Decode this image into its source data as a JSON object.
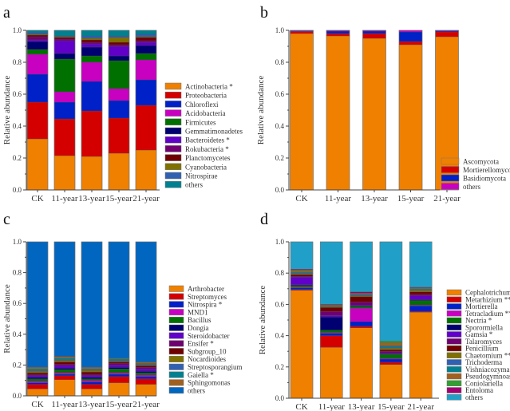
{
  "chart_data": [
    {
      "panel": "a",
      "type": "bar",
      "stacked": true,
      "ylabel": "Relative abundance",
      "ylim": [
        0,
        1
      ],
      "yticks": [
        "0.0",
        "0.2",
        "0.4",
        "0.6",
        "0.8",
        "1.0"
      ],
      "categories": [
        "CK",
        "11-year",
        "13-year",
        "15-year",
        "21-year"
      ],
      "legend_position": "right",
      "series": [
        {
          "name": "Actinobacteria *",
          "color": "#f08000",
          "values": [
            0.32,
            0.215,
            0.21,
            0.23,
            0.25
          ]
        },
        {
          "name": "Proteobacteria",
          "color": "#d40000",
          "values": [
            0.23,
            0.23,
            0.285,
            0.22,
            0.28
          ]
        },
        {
          "name": "Chloroflexi",
          "color": "#0020c8",
          "values": [
            0.175,
            0.105,
            0.185,
            0.11,
            0.16
          ]
        },
        {
          "name": "Acidobacteria",
          "color": "#c800c0",
          "values": [
            0.125,
            0.065,
            0.12,
            0.075,
            0.125
          ]
        },
        {
          "name": "Firmicutes",
          "color": "#007000",
          "values": [
            0.03,
            0.205,
            0.04,
            0.175,
            0.04
          ]
        },
        {
          "name": "Gemmatimonadetes",
          "color": "#000070",
          "values": [
            0.05,
            0.035,
            0.055,
            0.03,
            0.05
          ]
        },
        {
          "name": "Bacteroidetes *",
          "color": "#6000c8",
          "values": [
            0.01,
            0.08,
            0.02,
            0.06,
            0.02
          ]
        },
        {
          "name": "Rokubacteria *",
          "color": "#700070",
          "values": [
            0.02,
            0.01,
            0.01,
            0.01,
            0.01
          ]
        },
        {
          "name": "Planctomycetes",
          "color": "#700000",
          "values": [
            0.01,
            0.01,
            0.015,
            0.015,
            0.02
          ]
        },
        {
          "name": "Cyanobacteria",
          "color": "#807000",
          "values": [
            0.005,
            0.005,
            0.01,
            0.03,
            0.005
          ]
        },
        {
          "name": "Nitrospirae",
          "color": "#3060b0",
          "values": [
            0.01,
            0.005,
            0.015,
            0.01,
            0.015
          ]
        },
        {
          "name": "others",
          "color": "#008090",
          "values": [
            0.015,
            0.035,
            0.035,
            0.035,
            0.025
          ]
        }
      ]
    },
    {
      "panel": "b",
      "type": "bar",
      "stacked": true,
      "ylabel": "Relative abundance",
      "ylim": [
        0,
        1
      ],
      "yticks": [
        "0.0",
        "0.2",
        "0.4",
        "0.6",
        "0.8",
        "1.0"
      ],
      "categories": [
        "CK",
        "11-year",
        "13-year",
        "15-year",
        "21-year"
      ],
      "legend_position": "bottom-right",
      "series": [
        {
          "name": "Ascomycota",
          "color": "#f08000",
          "values": [
            0.98,
            0.965,
            0.95,
            0.91,
            0.96
          ]
        },
        {
          "name": "Mortierellomycota",
          "color": "#d40000",
          "values": [
            0.012,
            0.015,
            0.03,
            0.02,
            0.03
          ]
        },
        {
          "name": "Basidiomycota",
          "color": "#0020c8",
          "values": [
            0.003,
            0.015,
            0.015,
            0.06,
            0.005
          ]
        },
        {
          "name": "others",
          "color": "#c800c0",
          "values": [
            0.005,
            0.005,
            0.005,
            0.01,
            0.005
          ]
        }
      ]
    },
    {
      "panel": "c",
      "type": "bar",
      "stacked": true,
      "ylabel": "Relative abundance",
      "ylim": [
        0,
        1
      ],
      "yticks": [
        "0.0",
        "0.2",
        "0.4",
        "0.6",
        "0.8",
        "1.0"
      ],
      "categories": [
        "CK",
        "11-year",
        "13-year",
        "15-year",
        "21-year"
      ],
      "legend_position": "right",
      "series": [
        {
          "name": "Arthrobacter",
          "color": "#f08000",
          "values": [
            0.045,
            0.105,
            0.045,
            0.085,
            0.075
          ]
        },
        {
          "name": "Streptomyces",
          "color": "#d40000",
          "values": [
            0.03,
            0.025,
            0.03,
            0.04,
            0.035
          ]
        },
        {
          "name": "Nitrospira *",
          "color": "#0020c8",
          "values": [
            0.01,
            0.01,
            0.015,
            0.015,
            0.015
          ]
        },
        {
          "name": "MND1",
          "color": "#c800c0",
          "values": [
            0.01,
            0.01,
            0.01,
            0.01,
            0.01
          ]
        },
        {
          "name": "Bacillus",
          "color": "#007000",
          "values": [
            0.015,
            0.02,
            0.01,
            0.025,
            0.015
          ]
        },
        {
          "name": "Dongia",
          "color": "#000070",
          "values": [
            0.01,
            0.01,
            0.01,
            0.01,
            0.01
          ]
        },
        {
          "name": "Steroidobacter",
          "color": "#6000c8",
          "values": [
            0.01,
            0.015,
            0.01,
            0.015,
            0.015
          ]
        },
        {
          "name": "Ensifer *",
          "color": "#700070",
          "values": [
            0.01,
            0.01,
            0.01,
            0.01,
            0.01
          ]
        },
        {
          "name": "Subgroup_10",
          "color": "#700000",
          "values": [
            0.01,
            0.015,
            0.015,
            0.01,
            0.01
          ]
        },
        {
          "name": "Nocardioides",
          "color": "#807000",
          "values": [
            0.01,
            0.01,
            0.01,
            0.005,
            0.005
          ]
        },
        {
          "name": "Streptosporangium",
          "color": "#3060b0",
          "values": [
            0.005,
            0.005,
            0.005,
            0.005,
            0.005
          ]
        },
        {
          "name": "Gaiella *",
          "color": "#008090",
          "values": [
            0.01,
            0.01,
            0.005,
            0.01,
            0.005
          ]
        },
        {
          "name": "Sphingomonas",
          "color": "#a06020",
          "values": [
            0.01,
            0.01,
            0.01,
            0.005,
            0.01
          ]
        },
        {
          "name": "others",
          "color": "#0066c0",
          "values": [
            0.815,
            0.745,
            0.815,
            0.755,
            0.78
          ]
        }
      ]
    },
    {
      "panel": "d",
      "type": "bar",
      "stacked": true,
      "ylabel": "Relative abundance",
      "ylim": [
        0,
        1
      ],
      "yticks": [
        "0.0",
        "0.2",
        "0.4",
        "0.6",
        "0.8",
        "1.0"
      ],
      "categories": [
        "CK",
        "11-year",
        "13-year",
        "15-year",
        "21-year"
      ],
      "legend_position": "right",
      "series": [
        {
          "name": "Cephalotrichum ***",
          "color": "#f08000",
          "values": [
            0.69,
            0.325,
            0.45,
            0.215,
            0.55
          ]
        },
        {
          "name": "Metarhizium **",
          "color": "#d40000",
          "values": [
            0.005,
            0.075,
            0.01,
            0.015,
            0.005
          ]
        },
        {
          "name": "Mortierella",
          "color": "#0020c8",
          "values": [
            0.01,
            0.015,
            0.03,
            0.02,
            0.035
          ]
        },
        {
          "name": "Tetracladium **",
          "color": "#c800c0",
          "values": [
            0.005,
            0.005,
            0.085,
            0.005,
            0.005
          ]
        },
        {
          "name": "Nectria *",
          "color": "#007000",
          "values": [
            0.01,
            0.015,
            0.01,
            0.025,
            0.03
          ]
        },
        {
          "name": "Sporormiella",
          "color": "#000070",
          "values": [
            0.005,
            0.085,
            0.005,
            0.005,
            0.005
          ]
        },
        {
          "name": "Gamsia *",
          "color": "#6000c8",
          "values": [
            0.05,
            0.01,
            0.005,
            0.005,
            0.025
          ]
        },
        {
          "name": "Talaromyces",
          "color": "#700070",
          "values": [
            0.005,
            0.025,
            0.02,
            0.01,
            0.01
          ]
        },
        {
          "name": "Penicillium",
          "color": "#700000",
          "values": [
            0.01,
            0.025,
            0.035,
            0.01,
            0.015
          ]
        },
        {
          "name": "Chaetomium ***",
          "color": "#807000",
          "values": [
            0.005,
            0.005,
            0.005,
            0.01,
            0.01
          ]
        },
        {
          "name": "Trichoderma",
          "color": "#3060b0",
          "values": [
            0.005,
            0.003,
            0.005,
            0.005,
            0.005
          ]
        },
        {
          "name": "Vishniacozyma",
          "color": "#008090",
          "values": [
            0.005,
            0.002,
            0.005,
            0.01,
            0.005
          ]
        },
        {
          "name": "Pseudogymnoascus",
          "color": "#a06020",
          "values": [
            0.01,
            0.005,
            0.005,
            0.02,
            0.005
          ]
        },
        {
          "name": "Coniolariella",
          "color": "#30a030",
          "values": [
            0.005,
            0.002,
            0.002,
            0.01,
            0.002
          ]
        },
        {
          "name": "Entoloma",
          "color": "#a00070",
          "values": [
            0.005,
            0.003,
            0.008,
            0.0,
            0.003
          ]
        },
        {
          "name": "others",
          "color": "#20a0c8",
          "values": [
            0.175,
            0.4,
            0.32,
            0.635,
            0.29
          ]
        }
      ]
    }
  ]
}
